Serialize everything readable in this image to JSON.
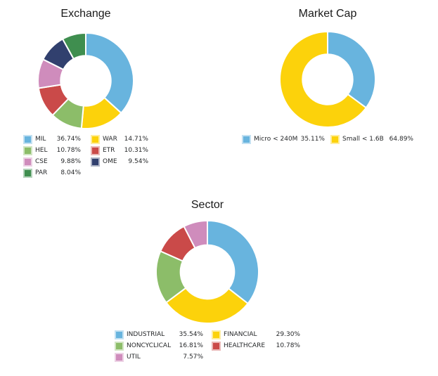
{
  "page": {
    "background_color": "#ffffff",
    "text_color": "#26282a",
    "title_color": "#1a1a1a"
  },
  "chart_data": [
    {
      "type": "pie",
      "subtype": "donut",
      "title": "Exchange",
      "categories": [
        "MIL",
        "WAR",
        "HEL",
        "ETR",
        "CSE",
        "OME",
        "PAR"
      ],
      "values": [
        36.74,
        14.71,
        10.78,
        10.31,
        9.88,
        9.54,
        8.04
      ],
      "value_labels": [
        "36.74%",
        "14.71%",
        "10.78%",
        "10.31%",
        "9.88%",
        "9.54%",
        "8.04%"
      ],
      "colors": [
        "#68B4DE",
        "#FCD20B",
        "#8CBD69",
        "#CA4A49",
        "#CF8CBC",
        "#31406E",
        "#3F8E4F"
      ],
      "start_angle": 0,
      "clockwise": true,
      "donut_hole_ratio": 0.525,
      "legend": {
        "position": "bottom",
        "columns": 2
      }
    },
    {
      "type": "pie",
      "subtype": "donut",
      "title": "Market Cap",
      "categories": [
        "Micro < 240M",
        "Small < 1.6B"
      ],
      "values": [
        35.11,
        64.89
      ],
      "value_labels": [
        "35.11%",
        "64.89%"
      ],
      "colors": [
        "#68B4DE",
        "#FCD20B"
      ],
      "start_angle": 0,
      "clockwise": true,
      "donut_hole_ratio": 0.525,
      "legend": {
        "position": "bottom",
        "columns": 2
      }
    },
    {
      "type": "pie",
      "subtype": "donut",
      "title": "Sector",
      "categories": [
        "INDUSTRIAL",
        "FINANCIAL",
        "NONCYCLICAL",
        "HEALTHCARE",
        "UTIL"
      ],
      "values": [
        35.54,
        29.3,
        16.81,
        10.78,
        7.57
      ],
      "value_labels": [
        "35.54%",
        "29.30%",
        "16.81%",
        "10.78%",
        "7.57%"
      ],
      "colors": [
        "#68B4DE",
        "#FCD20B",
        "#8CBD69",
        "#CA4A49",
        "#CF8CBC"
      ],
      "start_angle": 0,
      "clockwise": true,
      "donut_hole_ratio": 0.525,
      "legend": {
        "position": "bottom",
        "columns": 2
      }
    }
  ]
}
